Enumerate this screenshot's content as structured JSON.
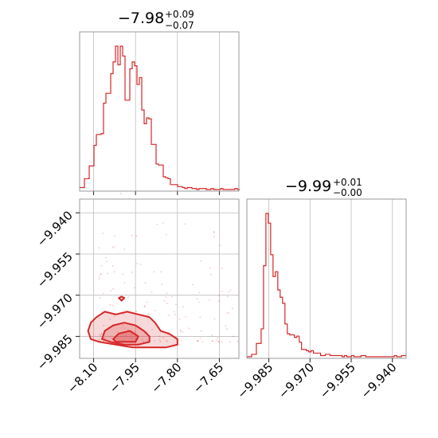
{
  "chart_data": {
    "type": "corner",
    "color": "#d62728",
    "parameters": [
      {
        "title_value": "−7.98",
        "title_plus": "+0.09",
        "title_minus": "−0.07",
        "range": [
          -8.15,
          -7.58
        ],
        "ticks": [
          -8.1,
          -7.95,
          -7.8,
          -7.65
        ],
        "tick_labels": [
          "−8.10",
          "−7.95",
          "−7.80",
          "−7.65"
        ]
      },
      {
        "title_value": "−9.99",
        "title_plus": "+0.01",
        "title_minus": "−0.00",
        "range": [
          -9.993,
          -9.935
        ],
        "ticks": [
          -9.985,
          -9.97,
          -9.955,
          -9.94
        ],
        "tick_labels": [
          "−9.985",
          "−9.970",
          "−9.955",
          "−9.940"
        ]
      }
    ],
    "histogram_1": {
      "type": "step",
      "bin_edges_start": -8.15,
      "bin_width": 0.00855,
      "counts": [
        2,
        2,
        11,
        11,
        24,
        24,
        45,
        56,
        56,
        57,
        88,
        98,
        98,
        118,
        130,
        146,
        127,
        146,
        136,
        91,
        91,
        123,
        130,
        126,
        107,
        114,
        81,
        67,
        73,
        72,
        46,
        46,
        26,
        25,
        25,
        13,
        12,
        11,
        5,
        5,
        5,
        3,
        3,
        2,
        1,
        2,
        2,
        1,
        1,
        0,
        1,
        1,
        1,
        0,
        0,
        1,
        0,
        0,
        0,
        1,
        0,
        0,
        0,
        0,
        0,
        1,
        0
      ]
    },
    "histogram_2": {
      "type": "step",
      "bin_edges_start": -9.993,
      "bin_width": 0.000866,
      "counts": [
        0,
        0,
        2,
        2,
        11,
        11,
        23,
        75,
        118,
        110,
        84,
        66,
        70,
        55,
        49,
        44,
        27,
        19,
        18,
        18,
        16,
        17,
        12,
        6,
        6,
        5,
        4,
        5,
        3,
        3,
        3,
        1,
        1,
        2,
        2,
        1,
        1,
        1,
        1,
        1,
        0,
        1,
        0,
        0,
        1,
        0,
        0,
        0,
        1,
        1,
        0,
        0,
        0,
        0,
        0,
        0,
        0,
        0,
        0,
        0,
        0,
        0,
        1,
        0,
        0,
        1,
        1
      ]
    },
    "joint": {
      "type": "2d-density",
      "x_param": 0,
      "y_param": 1,
      "levels": [
        [
          [
            -8.12,
            -9.983
          ],
          [
            -8.11,
            -9.98
          ],
          [
            -8.09,
            -9.978
          ],
          [
            -8.06,
            -9.976
          ],
          [
            -8.02,
            -9.977
          ],
          [
            -7.98,
            -9.976
          ],
          [
            -7.94,
            -9.977
          ],
          [
            -7.9,
            -9.978
          ],
          [
            -7.88,
            -9.98
          ],
          [
            -7.86,
            -9.983
          ],
          [
            -7.83,
            -9.984
          ],
          [
            -7.8,
            -9.986
          ],
          [
            -7.8,
            -9.988
          ],
          [
            -7.84,
            -9.989
          ],
          [
            -7.9,
            -9.989
          ],
          [
            -7.96,
            -9.989
          ],
          [
            -8.02,
            -9.988
          ],
          [
            -8.08,
            -9.987
          ],
          [
            -8.11,
            -9.986
          ]
        ],
        [
          [
            -8.07,
            -9.986
          ],
          [
            -8.06,
            -9.983
          ],
          [
            -8.03,
            -9.981
          ],
          [
            -7.99,
            -9.98
          ],
          [
            -7.95,
            -9.981
          ],
          [
            -7.92,
            -9.983
          ],
          [
            -7.9,
            -9.985
          ],
          [
            -7.9,
            -9.987
          ],
          [
            -7.94,
            -9.988
          ],
          [
            -7.99,
            -9.988
          ],
          [
            -8.04,
            -9.987
          ]
        ],
        [
          [
            -8.03,
            -9.986
          ],
          [
            -8.01,
            -9.984
          ],
          [
            -7.97,
            -9.983
          ],
          [
            -7.94,
            -9.985
          ],
          [
            -7.95,
            -9.987
          ],
          [
            -7.99,
            -9.987
          ],
          [
            -8.02,
            -9.987
          ]
        ],
        [
          [
            -8.01,
            -9.971
          ],
          [
            -8.0,
            -9.9705
          ],
          [
            -7.99,
            -9.971
          ],
          [
            -8.0,
            -9.972
          ]
        ]
      ]
    }
  }
}
